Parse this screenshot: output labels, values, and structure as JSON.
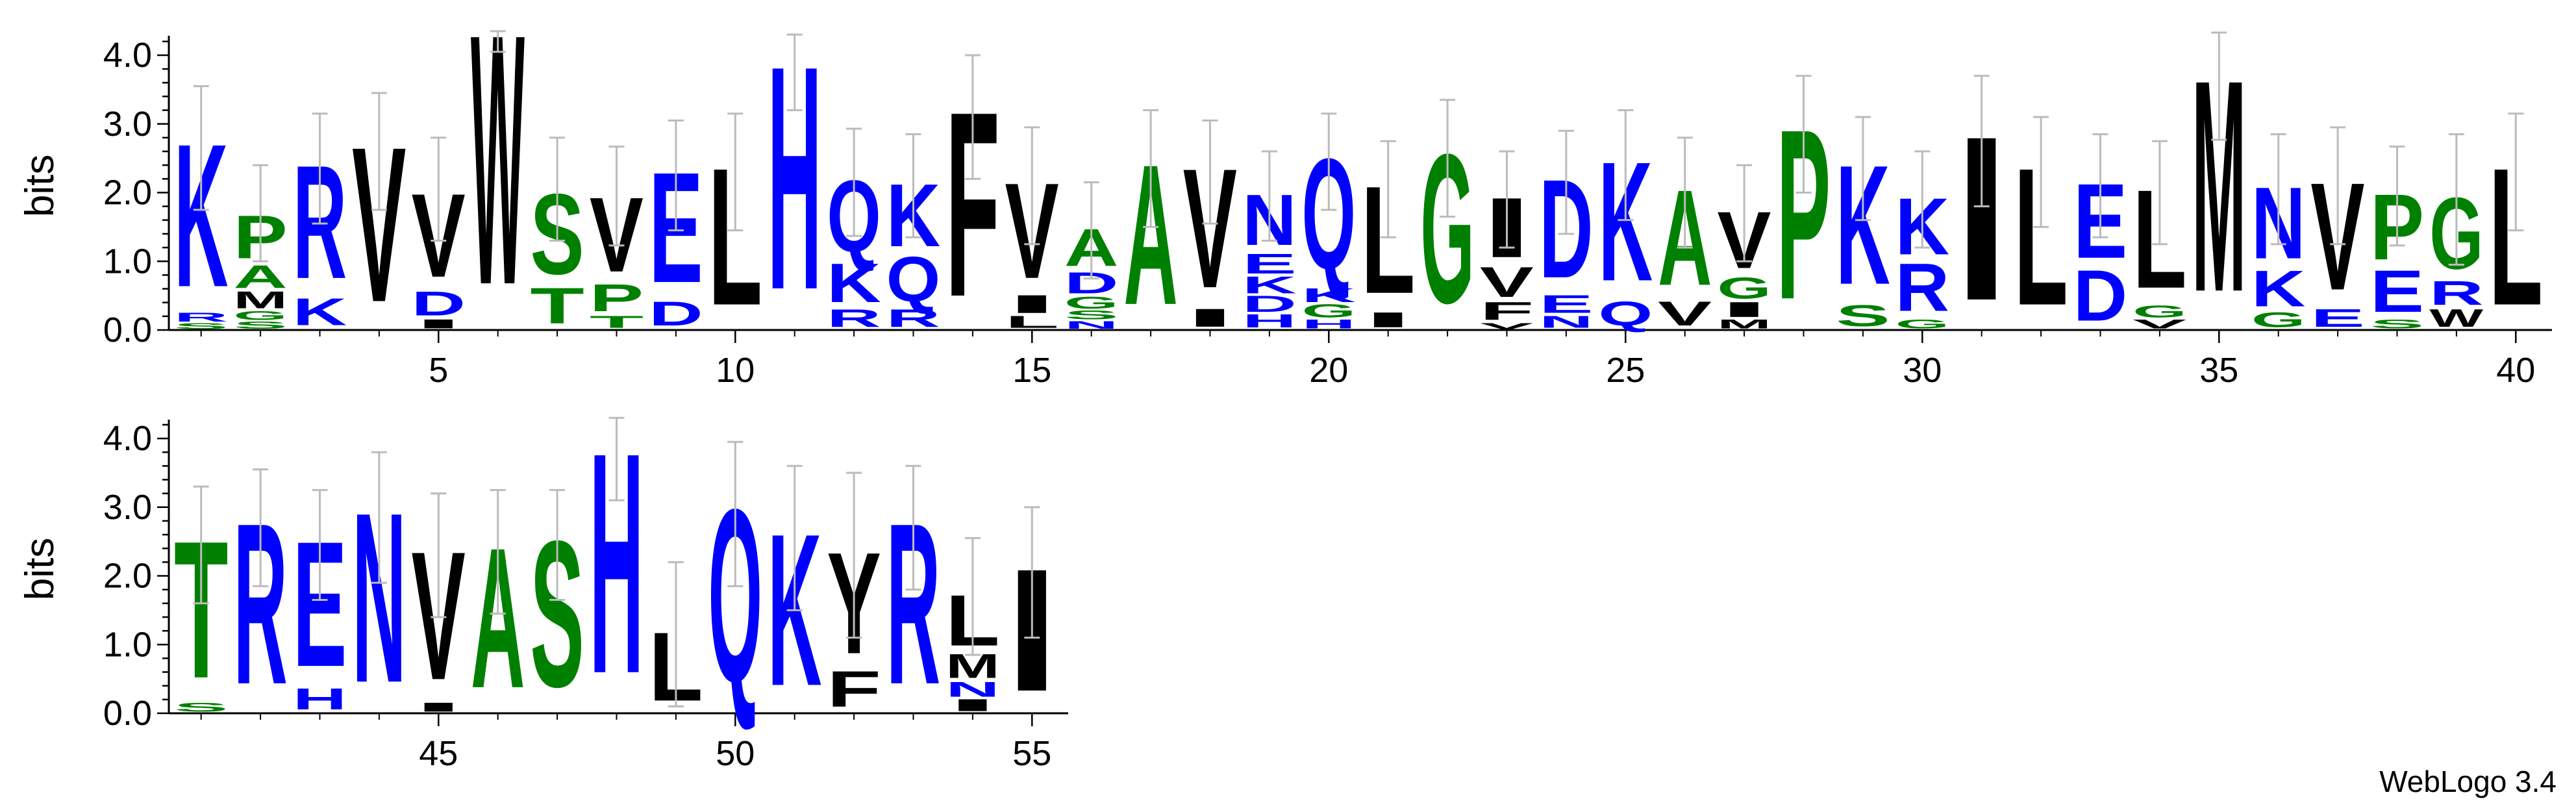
{
  "footer": "WebLogo 3.4",
  "colors": {
    "hydrophobic": "#000000",
    "polar": "#008000",
    "charged": "#0000ff",
    "error_bar": "#bbbbbb"
  },
  "chart_data": {
    "type": "sequence-logo",
    "ylabel": "bits",
    "ylim": [
      0,
      4.32
    ],
    "yticks": [
      "0.0",
      "1.0",
      "2.0",
      "3.0",
      "4.0"
    ],
    "rows": [
      {
        "xticks": [
          "5",
          "10",
          "15",
          "20",
          "25",
          "30",
          "35",
          "40"
        ],
        "positions": [
          1,
          40
        ]
      },
      {
        "xticks": [
          "45",
          "50",
          "55"
        ],
        "positions": [
          41,
          55
        ]
      }
    ],
    "columns": [
      {
        "pos": 1,
        "total": 2.65,
        "error": 0.9,
        "stack": [
          [
            "K",
            2.4
          ],
          [
            "R",
            0.15
          ],
          [
            "S",
            0.1
          ]
        ]
      },
      {
        "pos": 2,
        "total": 1.7,
        "error": 0.7,
        "stack": [
          [
            "P",
            0.72
          ],
          [
            "A",
            0.38
          ],
          [
            "M",
            0.28
          ],
          [
            "G",
            0.15
          ],
          [
            "S",
            0.12
          ]
        ]
      },
      {
        "pos": 3,
        "total": 2.35,
        "error": 0.8,
        "stack": [
          [
            "R",
            1.9
          ],
          [
            "K",
            0.45
          ]
        ]
      },
      {
        "pos": 4,
        "total": 2.6,
        "error": 0.85,
        "stack": [
          [
            "V",
            2.6
          ]
        ]
      },
      {
        "pos": 5,
        "total": 2.05,
        "error": 0.75,
        "stack": [
          [
            "V",
            1.4
          ],
          [
            "D",
            0.4
          ],
          [
            "I",
            0.15
          ]
        ]
      },
      {
        "pos": 6,
        "total": 4.2,
        "error": 0.15,
        "stack": [
          [
            "W",
            4.2
          ]
        ]
      },
      {
        "pos": 7,
        "total": 2.05,
        "error": 0.75,
        "stack": [
          [
            "S",
            1.35
          ],
          [
            "T",
            0.6
          ]
        ]
      },
      {
        "pos": 8,
        "total": 1.95,
        "error": 0.72,
        "stack": [
          [
            "V",
            1.25
          ],
          [
            "P",
            0.45
          ],
          [
            "T",
            0.2
          ]
        ]
      },
      {
        "pos": 9,
        "total": 2.25,
        "error": 0.8,
        "stack": [
          [
            "E",
            1.85
          ],
          [
            "D",
            0.4
          ]
        ]
      },
      {
        "pos": 10,
        "total": 2.3,
        "error": 0.85,
        "stack": [
          [
            "L",
            2.3
          ]
        ]
      },
      {
        "pos": 11,
        "total": 3.75,
        "error": 0.55,
        "stack": [
          [
            "H",
            3.75
          ]
        ]
      },
      {
        "pos": 12,
        "total": 2.15,
        "error": 0.78,
        "stack": [
          [
            "Q",
            1.2
          ],
          [
            "K",
            0.65
          ],
          [
            "R",
            0.3
          ]
        ]
      },
      {
        "pos": 13,
        "total": 2.1,
        "error": 0.75,
        "stack": [
          [
            "K",
            1.05
          ],
          [
            "Q",
            0.75
          ],
          [
            "R",
            0.3
          ]
        ]
      },
      {
        "pos": 14,
        "total": 3.1,
        "error": 0.9,
        "stack": [
          [
            "F",
            3.1
          ]
        ]
      },
      {
        "pos": 15,
        "total": 2.1,
        "error": 0.85,
        "stack": [
          [
            "V",
            1.6
          ],
          [
            "I",
            0.3
          ],
          [
            "L",
            0.2
          ]
        ]
      },
      {
        "pos": 16,
        "total": 1.45,
        "error": 0.7,
        "stack": [
          [
            "A",
            0.62
          ],
          [
            "D",
            0.35
          ],
          [
            "G",
            0.2
          ],
          [
            "S",
            0.15
          ],
          [
            "N",
            0.13
          ]
        ]
      },
      {
        "pos": 17,
        "total": 2.35,
        "error": 0.85,
        "stack": [
          [
            "A",
            2.35
          ]
        ]
      },
      {
        "pos": 18,
        "total": 2.3,
        "error": 0.75,
        "stack": [
          [
            "V",
            2.0
          ],
          [
            "I",
            0.3
          ]
        ]
      },
      {
        "pos": 19,
        "total": 1.95,
        "error": 0.65,
        "stack": [
          [
            "N",
            0.85
          ],
          [
            "E",
            0.33
          ],
          [
            "D",
            0.27
          ],
          [
            "H",
            0.22
          ],
          [
            "K",
            0.28
          ]
        ]
      },
      {
        "pos": 20,
        "total": 2.45,
        "error": 0.7,
        "stack": [
          [
            "Q",
            1.85
          ],
          [
            "G",
            0.22
          ],
          [
            "H",
            0.15
          ],
          [
            "K",
            0.23
          ]
        ]
      },
      {
        "pos": 21,
        "total": 2.05,
        "error": 0.7,
        "stack": [
          [
            "L",
            1.8
          ],
          [
            "I",
            0.25
          ]
        ]
      },
      {
        "pos": 22,
        "total": 2.5,
        "error": 0.85,
        "stack": [
          [
            "G",
            2.5
          ]
        ]
      },
      {
        "pos": 23,
        "total": 1.9,
        "error": 0.7,
        "stack": [
          [
            "I",
            1.0
          ],
          [
            "V",
            0.5
          ],
          [
            "F",
            0.3
          ],
          [
            "V",
            0.1
          ]
        ]
      },
      {
        "pos": 24,
        "total": 2.15,
        "error": 0.75,
        "stack": [
          [
            "D",
            1.65
          ],
          [
            "E",
            0.3
          ],
          [
            "N",
            0.2
          ]
        ]
      },
      {
        "pos": 25,
        "total": 2.4,
        "error": 0.8,
        "stack": [
          [
            "K",
            2.0
          ],
          [
            "Q",
            0.4
          ]
        ]
      },
      {
        "pos": 26,
        "total": 2.0,
        "error": 0.8,
        "stack": [
          [
            "A",
            1.6
          ],
          [
            "V",
            0.4
          ]
        ]
      },
      {
        "pos": 27,
        "total": 1.7,
        "error": 0.7,
        "stack": [
          [
            "V",
            0.95
          ],
          [
            "G",
            0.35
          ],
          [
            "I",
            0.25
          ],
          [
            "M",
            0.15
          ]
        ]
      },
      {
        "pos": 28,
        "total": 2.85,
        "error": 0.85,
        "stack": [
          [
            "P",
            2.85
          ]
        ]
      },
      {
        "pos": 29,
        "total": 2.35,
        "error": 0.75,
        "stack": [
          [
            "K",
            2.0
          ],
          [
            "S",
            0.35
          ]
        ]
      },
      {
        "pos": 30,
        "total": 1.9,
        "error": 0.7,
        "stack": [
          [
            "K",
            0.95
          ],
          [
            "R",
            0.8
          ],
          [
            "G",
            0.15
          ]
        ]
      },
      {
        "pos": 31,
        "total": 2.75,
        "error": 0.95,
        "stack": [
          [
            "I",
            2.75
          ]
        ]
      },
      {
        "pos": 32,
        "total": 2.3,
        "error": 0.8,
        "stack": [
          [
            "L",
            2.3
          ]
        ]
      },
      {
        "pos": 33,
        "total": 2.1,
        "error": 0.75,
        "stack": [
          [
            "E",
            1.25
          ],
          [
            "D",
            0.85
          ]
        ]
      },
      {
        "pos": 34,
        "total": 2.0,
        "error": 0.75,
        "stack": [
          [
            "L",
            1.65
          ],
          [
            "G",
            0.2
          ],
          [
            "V",
            0.15
          ]
        ]
      },
      {
        "pos": 35,
        "total": 3.55,
        "error": 0.78,
        "stack": [
          [
            "M",
            3.55
          ]
        ]
      },
      {
        "pos": 36,
        "total": 2.05,
        "error": 0.8,
        "stack": [
          [
            "N",
            1.2
          ],
          [
            "K",
            0.6
          ],
          [
            "G",
            0.25
          ]
        ]
      },
      {
        "pos": 37,
        "total": 2.1,
        "error": 0.85,
        "stack": [
          [
            "V",
            1.8
          ],
          [
            "E",
            0.3
          ]
        ]
      },
      {
        "pos": 38,
        "total": 1.95,
        "error": 0.72,
        "stack": [
          [
            "P",
            1.1
          ],
          [
            "E",
            0.7
          ],
          [
            "S",
            0.15
          ]
        ]
      },
      {
        "pos": 39,
        "total": 1.9,
        "error": 0.95,
        "stack": [
          [
            "G",
            1.2
          ],
          [
            "R",
            0.4
          ],
          [
            "W",
            0.3
          ]
        ]
      },
      {
        "pos": 40,
        "total": 2.3,
        "error": 0.85,
        "stack": [
          [
            "L",
            2.3
          ]
        ]
      },
      {
        "pos": 41,
        "total": 2.45,
        "error": 0.85,
        "stack": [
          [
            "T",
            2.3
          ],
          [
            "S",
            0.15
          ]
        ]
      },
      {
        "pos": 42,
        "total": 2.7,
        "error": 0.85,
        "stack": [
          [
            "R",
            2.7
          ]
        ]
      },
      {
        "pos": 43,
        "total": 2.45,
        "error": 0.8,
        "stack": [
          [
            "E",
            2.1
          ],
          [
            "H",
            0.35
          ]
        ]
      },
      {
        "pos": 44,
        "total": 2.85,
        "error": 0.95,
        "stack": [
          [
            "N",
            2.85
          ]
        ]
      },
      {
        "pos": 45,
        "total": 2.3,
        "error": 0.9,
        "stack": [
          [
            "V",
            2.15
          ],
          [
            "I",
            0.15
          ]
        ]
      },
      {
        "pos": 46,
        "total": 2.35,
        "error": 0.9,
        "stack": [
          [
            "A",
            2.35
          ]
        ]
      },
      {
        "pos": 47,
        "total": 2.45,
        "error": 0.8,
        "stack": [
          [
            "S",
            2.45
          ]
        ]
      },
      {
        "pos": 48,
        "total": 3.7,
        "error": 0.6,
        "stack": [
          [
            "H",
            3.7
          ]
        ]
      },
      {
        "pos": 49,
        "total": 1.15,
        "error": 1.05,
        "stack": [
          [
            "L",
            1.15
          ]
        ]
      },
      {
        "pos": 50,
        "total": 2.9,
        "error": 1.05,
        "stack": [
          [
            "Q",
            2.9
          ]
        ]
      },
      {
        "pos": 51,
        "total": 2.55,
        "error": 1.05,
        "stack": [
          [
            "K",
            2.55
          ]
        ]
      },
      {
        "pos": 52,
        "total": 2.3,
        "error": 1.2,
        "stack": [
          [
            "Y",
            1.7
          ],
          [
            "F",
            0.6
          ]
        ]
      },
      {
        "pos": 53,
        "total": 2.7,
        "error": 0.9,
        "stack": [
          [
            "R",
            2.7
          ]
        ]
      },
      {
        "pos": 54,
        "total": 1.7,
        "error": 0.85,
        "stack": [
          [
            "L",
            0.85
          ],
          [
            "M",
            0.4
          ],
          [
            "I",
            0.2
          ],
          [
            "N",
            0.25
          ]
        ]
      },
      {
        "pos": 55,
        "total": 2.05,
        "error": 0.95,
        "stack": [
          [
            "I",
            2.05
          ]
        ]
      }
    ]
  }
}
